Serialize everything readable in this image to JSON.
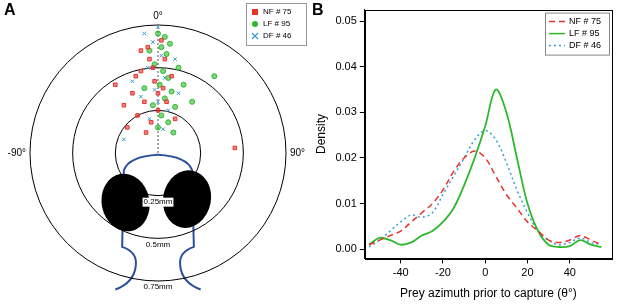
{
  "chart_data": [
    {
      "type": "scatter",
      "title": "A",
      "tick_labels": false,
      "legend": "top-right",
      "xlim": [
        -0.75,
        0.75
      ],
      "ylim": [
        -0.75,
        0.75
      ],
      "rings": [
        {
          "value": 0.25,
          "label": "0.25mm"
        },
        {
          "value": 0.5,
          "label": "0.5mm"
        },
        {
          "value": 0.75,
          "label": "0.75mm"
        }
      ],
      "angle_labels": [
        {
          "value": 0,
          "label": "0°"
        },
        {
          "value": -90,
          "label": "-90°"
        },
        {
          "value": 90,
          "label": "90°"
        }
      ],
      "series": [
        {
          "name": "NF # 75",
          "color": "#e8332f",
          "marker": "square",
          "x": [
            -0.05,
            -0.1,
            -0.02,
            -0.15,
            0.03,
            -0.08,
            -0.12,
            0.0,
            -0.04,
            -0.2,
            0.08,
            -0.06,
            0.02,
            -0.1,
            -0.03,
            0.05,
            -0.18,
            -0.07,
            0.1,
            0.45,
            -0.25,
            0.0,
            -0.13,
            0.04
          ],
          "values": [
            0.55,
            0.48,
            0.42,
            0.35,
            0.38,
            0.3,
            0.22,
            0.25,
            0.18,
            0.28,
            0.45,
            0.62,
            0.66,
            0.6,
            0.5,
            0.3,
            0.15,
            0.12,
            0.2,
            0.03,
            0.4,
            0.35,
            0.45,
            0.55
          ]
        },
        {
          "name": "LF # 95",
          "color": "#2db82d",
          "marker": "circle",
          "x": [
            0.0,
            0.02,
            0.05,
            -0.02,
            0.03,
            0.06,
            0.01,
            0.08,
            0.04,
            -0.03,
            0.1,
            0.02,
            0.06,
            0.12,
            -0.05,
            0.07,
            0.15,
            0.0,
            0.09,
            0.2,
            -0.08,
            0.04,
            0.33
          ],
          "values": [
            0.7,
            0.62,
            0.58,
            0.52,
            0.48,
            0.44,
            0.4,
            0.36,
            0.32,
            0.28,
            0.27,
            0.22,
            0.18,
            0.5,
            0.6,
            0.64,
            0.4,
            0.15,
            0.12,
            0.3,
            0.38,
            0.68,
            0.45
          ]
        },
        {
          "name": "DF # 46",
          "color": "#3a9bd0",
          "marker": "x",
          "x": [
            0.0,
            -0.03,
            0.02,
            -0.06,
            0.04,
            -0.02,
            0.0,
            -0.1,
            0.06,
            -0.05,
            0.03,
            -0.15,
            0.1,
            -0.08,
            0.12,
            -0.2
          ],
          "values": [
            0.74,
            0.65,
            0.57,
            0.5,
            0.44,
            0.37,
            0.3,
            0.33,
            0.25,
            0.2,
            0.14,
            0.42,
            0.55,
            0.7,
            0.35,
            0.08
          ]
        }
      ]
    },
    {
      "type": "line",
      "title": "B",
      "grid": false,
      "legend": "top-right",
      "x_label": "Prey azimuth prior to capture (θ°)",
      "y_label": "Density",
      "xlim": [
        -57,
        60
      ],
      "ylim": [
        -0.002,
        0.0525
      ],
      "xticks": [
        -40,
        -20,
        0,
        20,
        40
      ],
      "yticks": [
        {
          "value": 0,
          "label": "0.00"
        },
        0.01,
        0.02,
        0.03,
        0.04,
        0.05
      ],
      "x": [
        -55,
        -50,
        -45,
        -40,
        -35,
        -30,
        -25,
        -20,
        -15,
        -10,
        -5,
        0,
        5,
        10,
        15,
        20,
        25,
        30,
        35,
        40,
        45,
        50,
        55
      ],
      "series": [
        {
          "name": "NF # 75",
          "color": "#e8332f",
          "line_style": "dashed",
          "values": [
            0.001,
            0.002,
            0.003,
            0.004,
            0.006,
            0.008,
            0.01,
            0.013,
            0.017,
            0.02,
            0.0215,
            0.02,
            0.016,
            0.012,
            0.009,
            0.006,
            0.004,
            0.002,
            0.0015,
            0.002,
            0.003,
            0.002,
            0.001
          ]
        },
        {
          "name": "LF # 95",
          "color": "#2db82d",
          "line_style": "solid",
          "values": [
            0.001,
            0.0025,
            0.002,
            0.001,
            0.0015,
            0.003,
            0.004,
            0.006,
            0.009,
            0.014,
            0.02,
            0.027,
            0.035,
            0.03,
            0.02,
            0.01,
            0.004,
            0.001,
            0.0005,
            0.0007,
            0.002,
            0.001,
            0.0005
          ]
        },
        {
          "name": "DF # 46",
          "color": "#3a9bd0",
          "line_style": "dotted",
          "values": [
            0.0005,
            0.002,
            0.004,
            0.006,
            0.0075,
            0.007,
            0.008,
            0.012,
            0.016,
            0.02,
            0.024,
            0.026,
            0.024,
            0.019,
            0.013,
            0.008,
            0.004,
            0.002,
            0.001,
            0.0015,
            0.0025,
            0.0015,
            0.001
          ]
        }
      ]
    }
  ]
}
